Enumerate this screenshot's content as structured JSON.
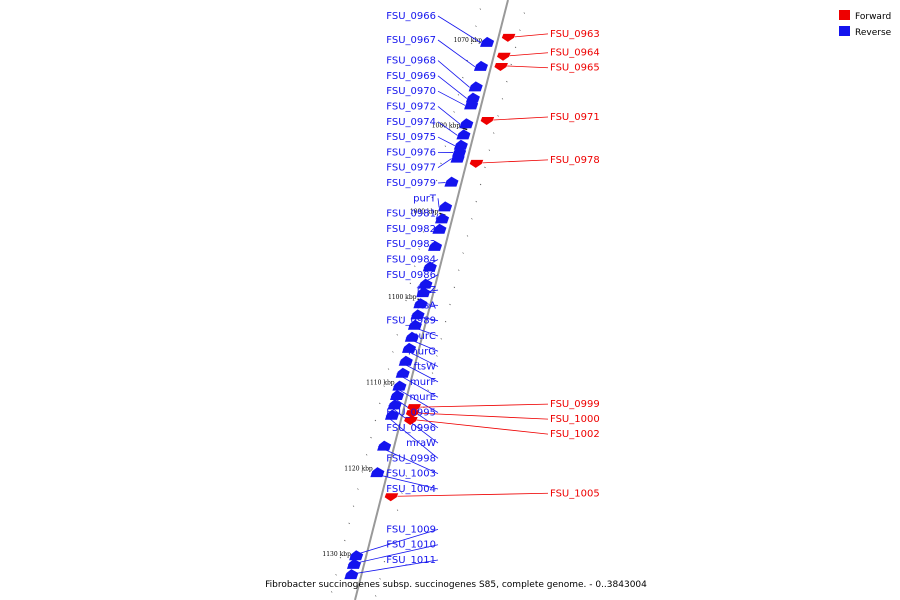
{
  "colors": {
    "forward": "#ee0000",
    "reverse": "#1414ee",
    "backbone": "#999999"
  },
  "legend": {
    "forward_label": "Forward",
    "reverse_label": "Reverse"
  },
  "caption": "Fibrobacter succinogenes subsp. succinogenes S85, complete genome. - 0..3843004",
  "ticks": [
    {
      "label": "1070 kbp",
      "kbp": 1070
    },
    {
      "label": "1080 kbp",
      "kbp": 1080
    },
    {
      "label": "1090 kbp",
      "kbp": 1090
    },
    {
      "label": "1100 kbp",
      "kbp": 1100
    },
    {
      "label": "1110 kbp",
      "kbp": 1110
    },
    {
      "label": "1120 kbp",
      "kbp": 1120
    },
    {
      "label": "1130 kbp",
      "kbp": 1130
    }
  ],
  "features": [
    {
      "name": "FSU_0963",
      "strand": "forward",
      "kbp": 1069.3
    },
    {
      "name": "FSU_0964",
      "strand": "forward",
      "kbp": 1071.5
    },
    {
      "name": "FSU_0965",
      "strand": "forward",
      "kbp": 1072.7
    },
    {
      "name": "FSU_0966",
      "strand": "reverse",
      "kbp": 1070.0
    },
    {
      "name": "FSU_0967",
      "strand": "reverse",
      "kbp": 1072.8
    },
    {
      "name": "FSU_0968",
      "strand": "reverse",
      "kbp": 1075.2
    },
    {
      "name": "FSU_0969",
      "strand": "reverse",
      "kbp": 1076.5
    },
    {
      "name": "FSU_0970",
      "strand": "reverse",
      "kbp": 1077.3
    },
    {
      "name": "FSU_0971",
      "strand": "forward",
      "kbp": 1079.0
    },
    {
      "name": "FSU_0972",
      "strand": "reverse",
      "kbp": 1079.5
    },
    {
      "name": "FSU_0974",
      "strand": "reverse",
      "kbp": 1080.8
    },
    {
      "name": "FSU_0975",
      "strand": "reverse",
      "kbp": 1082.0
    },
    {
      "name": "FSU_0976",
      "strand": "reverse",
      "kbp": 1082.8
    },
    {
      "name": "FSU_0977",
      "strand": "reverse",
      "kbp": 1083.5
    },
    {
      "name": "FSU_0978",
      "strand": "forward",
      "kbp": 1084.0
    },
    {
      "name": "FSU_0979",
      "strand": "reverse",
      "kbp": 1086.3
    },
    {
      "name": "purT",
      "strand": "reverse",
      "kbp": 1089.2
    },
    {
      "name": "FSU_0981",
      "strand": "reverse",
      "kbp": 1090.6
    },
    {
      "name": "FSU_0982",
      "strand": "reverse",
      "kbp": 1091.8
    },
    {
      "name": "FSU_0983",
      "strand": "reverse",
      "kbp": 1093.8
    },
    {
      "name": "FSU_0984",
      "strand": "reverse",
      "kbp": 1096.2
    },
    {
      "name": "FSU_0986",
      "strand": "reverse",
      "kbp": 1098.2
    },
    {
      "name": "ftsZ",
      "strand": "reverse",
      "kbp": 1099.2
    },
    {
      "name": "ftsA",
      "strand": "reverse",
      "kbp": 1100.5
    },
    {
      "name": "FSU_0989",
      "strand": "reverse",
      "kbp": 1101.8
    },
    {
      "name": "murC",
      "strand": "reverse",
      "kbp": 1103.0
    },
    {
      "name": "murG",
      "strand": "reverse",
      "kbp": 1104.4
    },
    {
      "name": "ftsW",
      "strand": "reverse",
      "kbp": 1105.7
    },
    {
      "name": "murF",
      "strand": "reverse",
      "kbp": 1107.2
    },
    {
      "name": "murE",
      "strand": "reverse",
      "kbp": 1108.6
    },
    {
      "name": "FSU_0995",
      "strand": "reverse",
      "kbp": 1110.1
    },
    {
      "name": "FSU_0996",
      "strand": "reverse",
      "kbp": 1111.2
    },
    {
      "name": "mraW",
      "strand": "reverse",
      "kbp": 1112.3
    },
    {
      "name": "FSU_0998",
      "strand": "reverse",
      "kbp": 1113.5
    },
    {
      "name": "FSU_0999",
      "strand": "forward",
      "kbp": 1112.5
    },
    {
      "name": "FSU_1000",
      "strand": "forward",
      "kbp": 1113.2
    },
    {
      "name": "FSU_1002",
      "strand": "forward",
      "kbp": 1114.0
    },
    {
      "name": "FSU_1003",
      "strand": "reverse",
      "kbp": 1117.1
    },
    {
      "name": "FSU_1004",
      "strand": "reverse",
      "kbp": 1120.2
    },
    {
      "name": "FSU_1005",
      "strand": "forward",
      "kbp": 1122.9
    },
    {
      "name": "FSU_1009",
      "strand": "reverse",
      "kbp": 1129.9
    },
    {
      "name": "FSU_1010",
      "strand": "reverse",
      "kbp": 1130.9
    },
    {
      "name": "FSU_1011",
      "strand": "reverse",
      "kbp": 1132.1
    }
  ]
}
